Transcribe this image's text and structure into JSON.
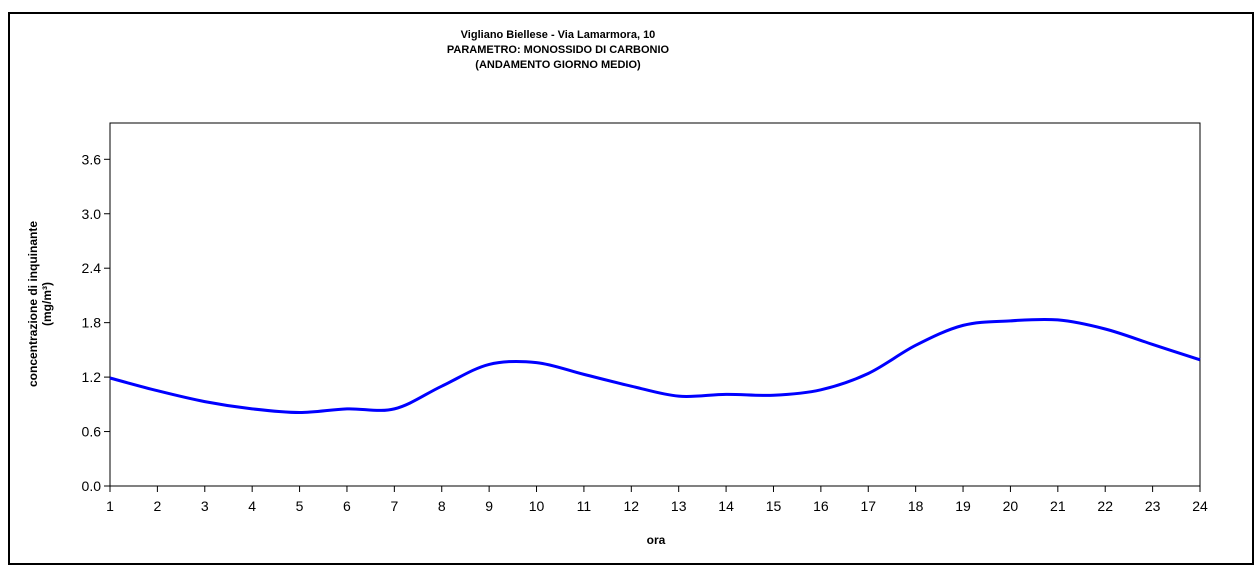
{
  "chart_data": {
    "type": "line",
    "title_lines": [
      "Vigliano Biellese - Via Lamarmora, 10",
      "PARAMETRO: MONOSSIDO DI CARBONIO",
      "(ANDAMENTO GIORNO MEDIO)"
    ],
    "xlabel": "ora",
    "ylabel_lines": [
      "concentrazione di inquinante",
      "(mg/m³)"
    ],
    "x": [
      1,
      2,
      3,
      4,
      5,
      6,
      7,
      8,
      9,
      10,
      11,
      12,
      13,
      14,
      15,
      16,
      17,
      18,
      19,
      20,
      21,
      22,
      23,
      24
    ],
    "series": [
      {
        "values": [
          1.19,
          1.05,
          0.93,
          0.85,
          0.81,
          0.85,
          0.85,
          1.1,
          1.34,
          1.36,
          1.23,
          1.1,
          0.99,
          1.01,
          1.0,
          1.06,
          1.24,
          1.55,
          1.77,
          1.82,
          1.83,
          1.73,
          1.56,
          1.39
        ],
        "color": "#0000ff"
      }
    ],
    "xlim": [
      1,
      24
    ],
    "ylim": [
      0,
      4.0
    ],
    "yticks": [
      "0.0",
      "0.6",
      "1.2",
      "1.8",
      "2.4",
      "3.0",
      "3.6"
    ],
    "grid": false,
    "legend": "none"
  }
}
